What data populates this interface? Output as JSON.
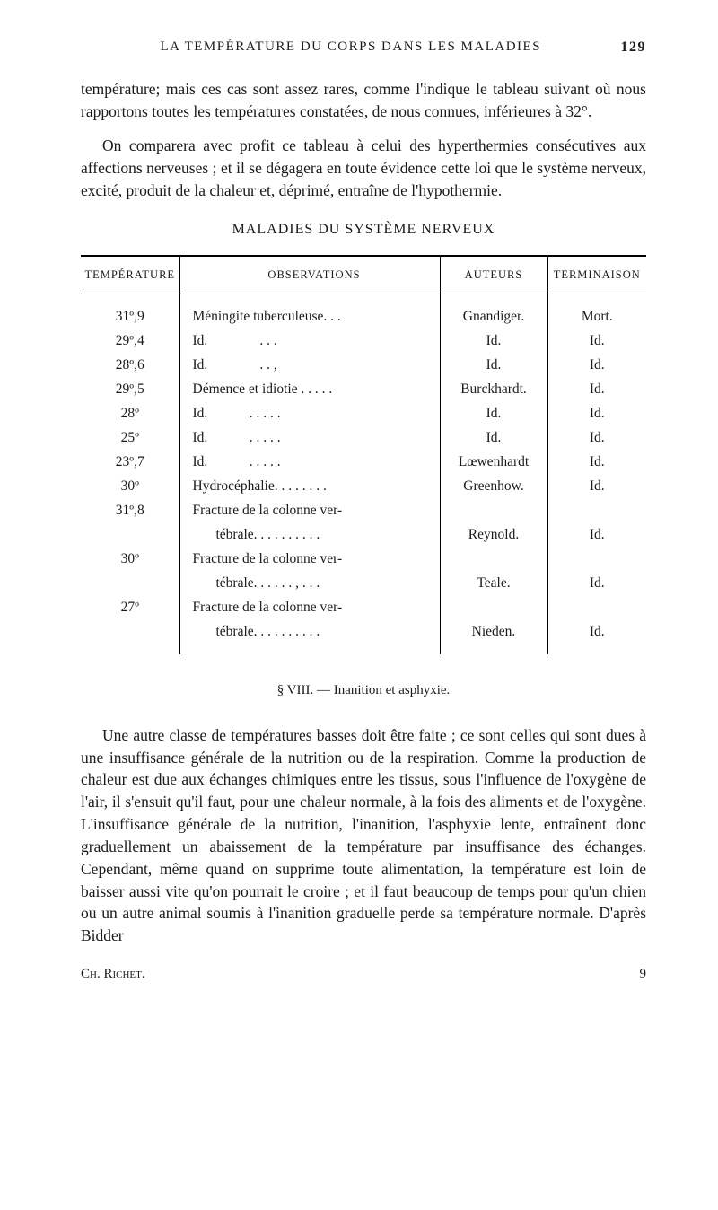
{
  "header": {
    "title": "LA TEMPÉRATURE DU CORPS DANS LES MALADIES",
    "page": "129"
  },
  "paragraphs": {
    "p1": "température; mais ces cas sont assez rares, comme l'indique le tableau suivant où nous rapportons toutes les températures constatées, de nous connues, inférieures à 32°.",
    "p2": "On comparera avec profit ce tableau à celui des hyperthermies consécutives aux affections nerveuses ; et il se dégagera en toute évidence cette loi que le système nerveux, excité, produit de la chaleur et, déprimé, entraîne de l'hypothermie."
  },
  "table_title": "MALADIES DU SYSTÈME NERVEUX",
  "table": {
    "columns": [
      "TEMPÉRATURE",
      "OBSERVATIONS",
      "AUTEURS",
      "TERMINAISON"
    ],
    "rows": [
      {
        "temp": "31º,9",
        "obs": "Méningite tuberculeuse. . .",
        "aut": "Gnandiger.",
        "term": "Mort."
      },
      {
        "temp": "29º,4",
        "obs": "Id.               . . .",
        "aut": "Id.",
        "term": "Id."
      },
      {
        "temp": "28º,6",
        "obs": "Id.               . . ,",
        "aut": "Id.",
        "term": "Id."
      },
      {
        "temp": "29º,5",
        "obs": "Démence et idiotie . . . . .",
        "aut": "Burckhardt.",
        "term": "Id."
      },
      {
        "temp": "28º",
        "obs": "Id.            . . . . .",
        "aut": "Id.",
        "term": "Id."
      },
      {
        "temp": "25º",
        "obs": "Id.            . . . . .",
        "aut": "Id.",
        "term": "Id."
      },
      {
        "temp": "23º,7",
        "obs": "Id.            . . . . .",
        "aut": "Lœwenhardt",
        "term": "Id."
      },
      {
        "temp": "30º",
        "obs": "Hydrocéphalie. . . . . . . .",
        "aut": "Greenhow.",
        "term": "Id."
      },
      {
        "temp": "31º,8",
        "obs": "Fracture de la colonne ver-",
        "aut": "",
        "term": ""
      },
      {
        "temp": "",
        "obs_sub": "tébrale. . . . . . . . . .",
        "aut": "Reynold.",
        "term": "Id."
      },
      {
        "temp": "30º",
        "obs": "Fracture de la colonne ver-",
        "aut": "",
        "term": ""
      },
      {
        "temp": "",
        "obs_sub": "tébrale. . . . . . , . . .",
        "aut": "Teale.",
        "term": "Id."
      },
      {
        "temp": "27º",
        "obs": "Fracture de la colonne ver-",
        "aut": "",
        "term": ""
      },
      {
        "temp": "",
        "obs_sub": "tébrale. . . . . . . . . .",
        "aut": "Nieden.",
        "term": "Id."
      }
    ]
  },
  "sub_heading": "§ VIII. — Inanition et asphyxie.",
  "paragraphs2": {
    "p3": "Une autre classe de températures basses doit être faite ; ce sont celles qui sont dues à une insuffisance générale de la nutrition ou de la respiration. Comme la production de chaleur est due aux échanges chimiques entre les tissus, sous l'influence de l'oxygène de l'air, il s'ensuit qu'il faut, pour une chaleur normale, à la fois des aliments et de l'oxygène. L'insuffisance générale de la nutrition, l'inanition, l'asphyxie lente, entraînent donc graduellement un abaissement de la température par insuffisance des échanges. Cependant, même quand on supprime toute alimentation, la température est loin de baisser aussi vite qu'on pourrait le croire ; et il faut beaucoup de temps pour qu'un chien ou un autre animal soumis à l'inanition graduelle perde sa température normale. D'après Bidder"
  },
  "footer": {
    "author": "Ch. Richet.",
    "sig": "9"
  },
  "style": {
    "bg": "#ffffff",
    "text": "#1a1a1a",
    "rule": "#000000",
    "font_body_pt": 17.5,
    "font_header_pt": 15,
    "font_table_header_pt": 12.5,
    "font_table_body_pt": 15.5
  }
}
